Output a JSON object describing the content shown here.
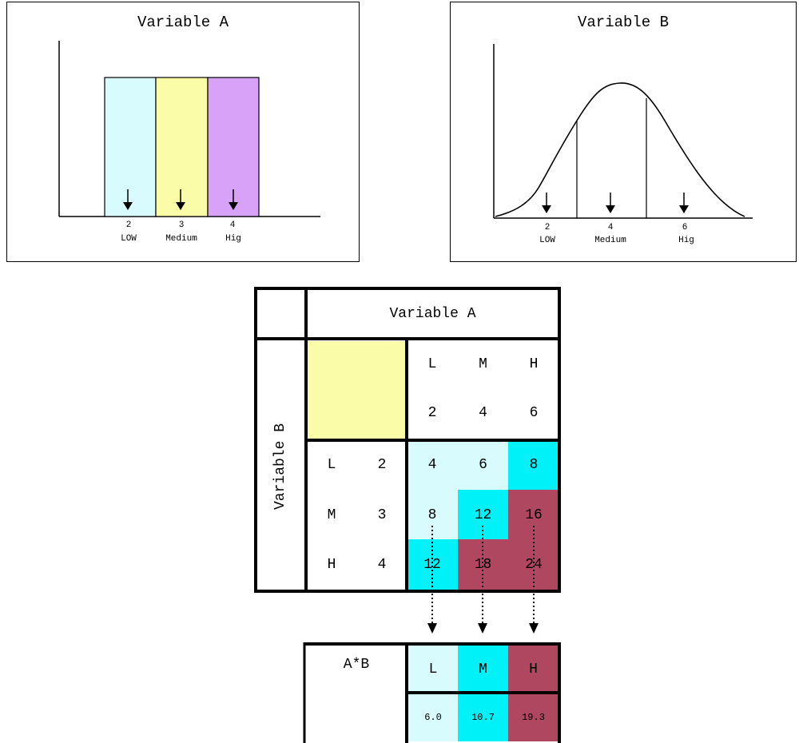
{
  "panel_a": {
    "title": "Variable A",
    "bars": [
      {
        "tick": "2",
        "label": "LOW",
        "color": "#d8fbfd"
      },
      {
        "tick": "3",
        "label": "Medium",
        "color": "#fbfca8"
      },
      {
        "tick": "4",
        "label": "Hig",
        "color": "#d7a2f8"
      }
    ]
  },
  "panel_b": {
    "title": "Variable B",
    "points": [
      {
        "tick": "2",
        "label": "LOW"
      },
      {
        "tick": "4",
        "label": "Medium"
      },
      {
        "tick": "6",
        "label": "Hig"
      }
    ]
  },
  "matrix": {
    "header": "Variable A",
    "side_label": "Variable B",
    "col_letters": [
      "L",
      "M",
      "H"
    ],
    "col_values": [
      "2",
      "4",
      "6"
    ],
    "row_letters": [
      "L",
      "M",
      "H"
    ],
    "row_values": [
      "2",
      "3",
      "4"
    ],
    "cells": [
      [
        {
          "v": "4",
          "c": "light"
        },
        {
          "v": "6",
          "c": "light"
        },
        {
          "v": "8",
          "c": "cyan"
        }
      ],
      [
        {
          "v": "8",
          "c": "light"
        },
        {
          "v": "12",
          "c": "cyan"
        },
        {
          "v": "16",
          "c": "maroon"
        }
      ],
      [
        {
          "v": "12",
          "c": "cyan"
        },
        {
          "v": "18",
          "c": "maroon"
        },
        {
          "v": "24",
          "c": "maroon"
        }
      ]
    ],
    "corner_color": "#fbfca8"
  },
  "result": {
    "label": "A*B",
    "letters": [
      "L",
      "M",
      "H"
    ],
    "values": [
      "6.0",
      "10.7",
      "19.3"
    ]
  },
  "colors": {
    "light": "#d8fbfd",
    "cyan": "#00f2f8",
    "maroon": "#b04760"
  }
}
